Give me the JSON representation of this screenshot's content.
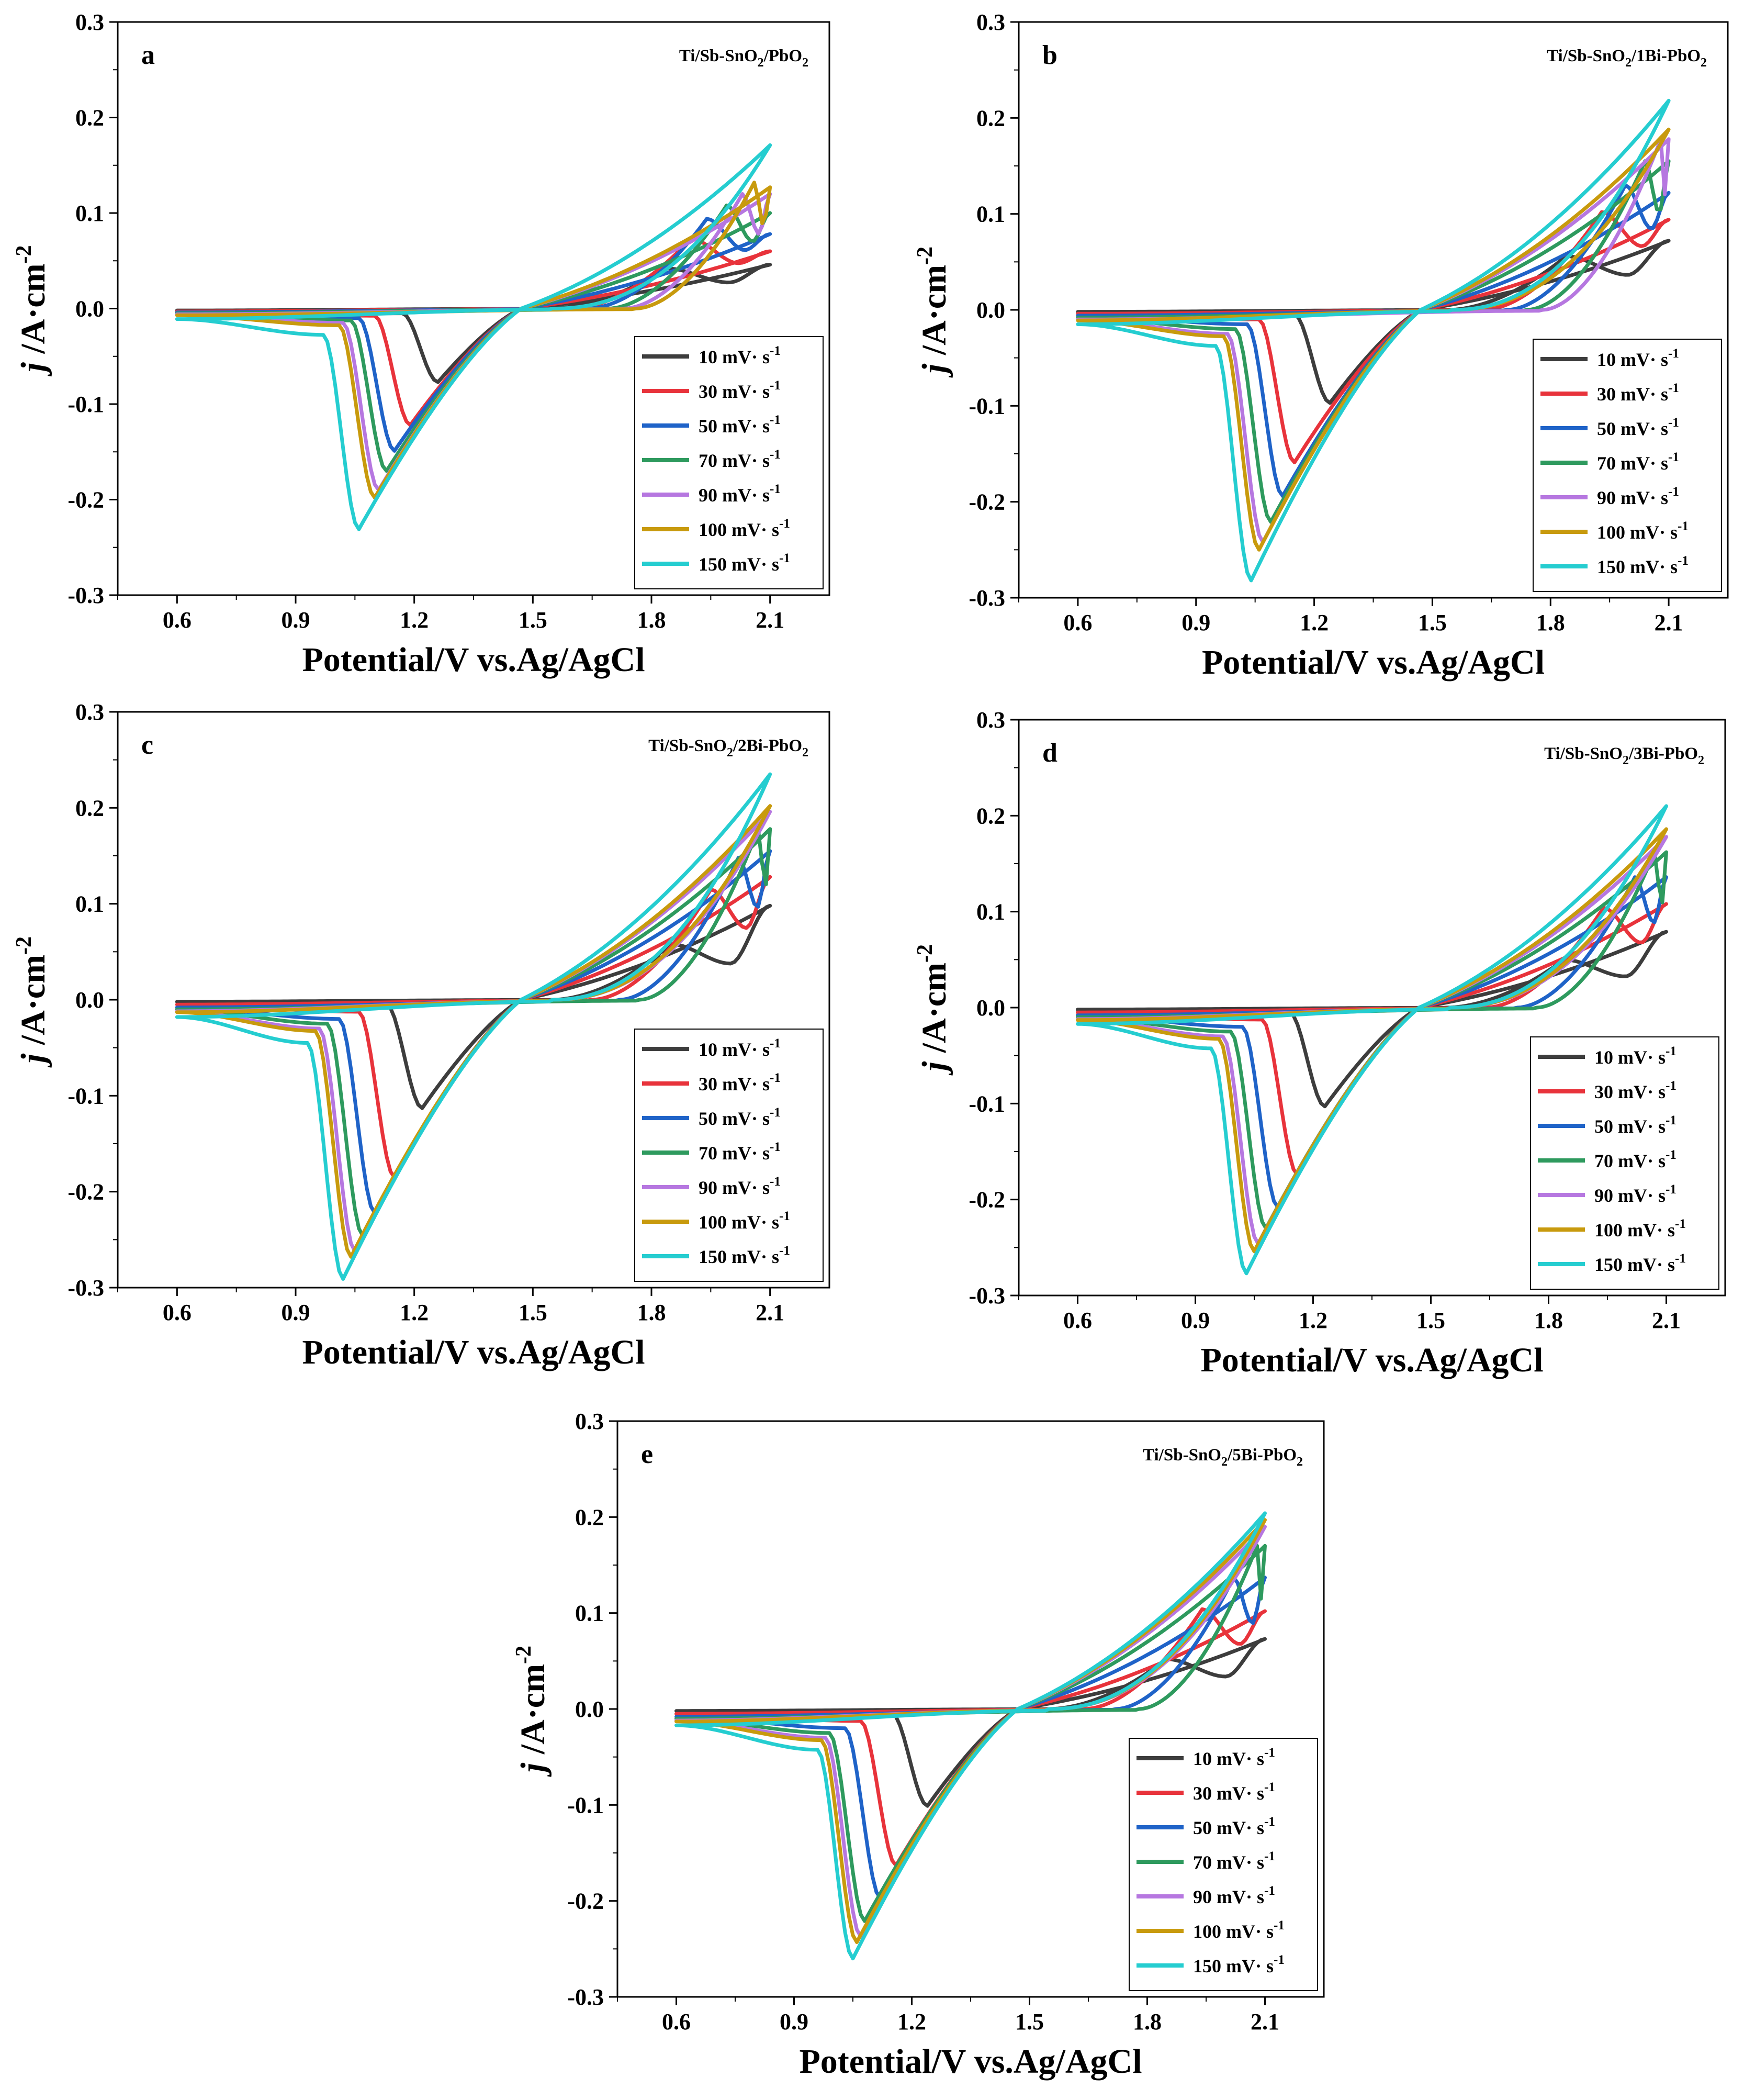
{
  "figure": {
    "scan_rates": [
      "10",
      "30",
      "50",
      "70",
      "90",
      "100",
      "150"
    ],
    "series_colors": [
      "#3d3d3d",
      "#e8333b",
      "#1f63c8",
      "#2e9a5e",
      "#b677e0",
      "#c89a0d",
      "#25cdd0"
    ]
  },
  "chart_data": [
    {
      "type": "line",
      "id": "a",
      "letter": "a",
      "label_main": "Ti/Sb-SnO",
      "label_sub": "2",
      "label_rest": "/PbO",
      "label_sub2": "2",
      "title": "",
      "xlabel": "Potential/V vs.Ag/AgCl",
      "ylabel_italic": "j",
      "ylabel_rest": " /A·cm",
      "ylabel_sup": "-2",
      "xlim": [
        0.45,
        2.25
      ],
      "ylim": [
        -0.3,
        0.3
      ],
      "xticks": [
        "0.6",
        "0.9",
        "1.2",
        "1.5",
        "1.8",
        "2.1"
      ],
      "yticks": [
        "-0.3",
        "-0.2",
        "-0.1",
        "0.0",
        "0.1",
        "0.2",
        "0.3"
      ],
      "series": [
        {
          "name": "10 mV· s",
          "sup": "-1",
          "peak_v": 1.26,
          "peak_j": -0.077,
          "max_j": 0.046,
          "ox_peak_v": 1.84,
          "ox_peak_j": 0.042,
          "base": -0.002
        },
        {
          "name": "30 mV· s",
          "sup": "-1",
          "peak_v": 1.19,
          "peak_j": -0.122,
          "max_j": 0.06,
          "ox_peak_v": 1.9,
          "ox_peak_j": 0.073,
          "base": -0.003
        },
        {
          "name": "50 mV· s",
          "sup": "-1",
          "peak_v": 1.15,
          "peak_j": -0.149,
          "max_j": 0.078,
          "ox_peak_v": 1.94,
          "ox_peak_j": 0.094,
          "base": -0.004
        },
        {
          "name": "70 mV· s",
          "sup": "-1",
          "peak_v": 1.13,
          "peak_j": -0.17,
          "max_j": 0.1,
          "ox_peak_v": 1.99,
          "ox_peak_j": 0.108,
          "base": -0.005
        },
        {
          "name": "90 mV· s",
          "sup": "-1",
          "peak_v": 1.11,
          "peak_j": -0.19,
          "max_j": 0.12,
          "ox_peak_v": 2.03,
          "ox_peak_j": 0.12,
          "base": -0.006
        },
        {
          "name": "100 mV· s",
          "sup": "-1",
          "peak_v": 1.1,
          "peak_j": -0.198,
          "max_j": 0.127,
          "ox_peak_v": 2.06,
          "ox_peak_j": 0.132,
          "base": -0.007
        },
        {
          "name": "150 mV· s",
          "sup": "-1",
          "peak_v": 1.06,
          "peak_j": -0.231,
          "max_j": 0.171,
          "ox_peak_v": 2.1,
          "ox_peak_j": 0.171,
          "base": -0.011
        }
      ]
    },
    {
      "type": "line",
      "id": "b",
      "letter": "b",
      "label_main": "Ti/Sb-SnO",
      "label_sub": "2",
      "label_rest": "/1Bi-PbO",
      "label_sub2": "2",
      "title": "",
      "xlabel": "Potential/V vs.Ag/AgCl",
      "ylabel_italic": "j",
      "ylabel_rest": " /A·cm",
      "ylabel_sup": "-2",
      "xlim": [
        0.45,
        2.25
      ],
      "ylim": [
        -0.3,
        0.3
      ],
      "xticks": [
        "0.6",
        "0.9",
        "1.2",
        "1.5",
        "1.8",
        "2.1"
      ],
      "yticks": [
        "-0.3",
        "-0.2",
        "-0.1",
        "0.0",
        "0.1",
        "0.2",
        "0.3"
      ],
      "series": [
        {
          "name": "10 mV· s",
          "sup": "-1",
          "peak_v": 1.24,
          "peak_j": -0.097,
          "max_j": 0.072,
          "ox_peak_v": 1.84,
          "ox_peak_j": 0.056,
          "base": -0.002
        },
        {
          "name": "30 mV· s",
          "sup": "-1",
          "peak_v": 1.15,
          "peak_j": -0.159,
          "max_j": 0.094,
          "ox_peak_v": 1.93,
          "ox_peak_j": 0.102,
          "base": -0.004
        },
        {
          "name": "50 mV· s",
          "sup": "-1",
          "peak_v": 1.12,
          "peak_j": -0.194,
          "max_j": 0.122,
          "ox_peak_v": 1.99,
          "ox_peak_j": 0.13,
          "base": -0.006
        },
        {
          "name": "70 mV· s",
          "sup": "-1",
          "peak_v": 1.09,
          "peak_j": -0.221,
          "max_j": 0.155,
          "ox_peak_v": 2.04,
          "ox_peak_j": 0.155,
          "base": -0.008
        },
        {
          "name": "90 mV· s",
          "sup": "-1",
          "peak_v": 1.07,
          "peak_j": -0.242,
          "max_j": 0.178,
          "ox_peak_v": 2.08,
          "ox_peak_j": 0.178,
          "base": -0.01
        },
        {
          "name": "100 mV· s",
          "sup": "-1",
          "peak_v": 1.06,
          "peak_j": -0.25,
          "max_j": 0.188,
          "ox_peak_v": 2.1,
          "ox_peak_j": 0.188,
          "base": -0.011
        },
        {
          "name": "150 mV· s",
          "sup": "-1",
          "peak_v": 1.04,
          "peak_j": -0.282,
          "max_j": 0.218,
          "ox_peak_v": 2.1,
          "ox_peak_j": 0.218,
          "base": -0.015
        }
      ]
    },
    {
      "type": "line",
      "id": "c",
      "letter": "c",
      "label_main": "Ti/Sb-SnO",
      "label_sub": "2",
      "label_rest": "/2Bi-PbO",
      "label_sub2": "2",
      "title": "",
      "xlabel": "Potential/V vs.Ag/AgCl",
      "ylabel_italic": "j",
      "ylabel_rest": " /A·cm",
      "ylabel_sup": "-2",
      "xlim": [
        0.45,
        2.25
      ],
      "ylim": [
        -0.3,
        0.3
      ],
      "xticks": [
        "0.6",
        "0.9",
        "1.2",
        "1.5",
        "1.8",
        "2.1"
      ],
      "yticks": [
        "-0.3",
        "-0.2",
        "-0.1",
        "0.0",
        "0.1",
        "0.2",
        "0.3"
      ],
      "series": [
        {
          "name": "10 mV· s",
          "sup": "-1",
          "peak_v": 1.22,
          "peak_j": -0.113,
          "max_j": 0.098,
          "ox_peak_v": 1.85,
          "ox_peak_j": 0.058,
          "base": -0.002
        },
        {
          "name": "30 mV· s",
          "sup": "-1",
          "peak_v": 1.15,
          "peak_j": -0.185,
          "max_j": 0.128,
          "ox_peak_v": 1.95,
          "ox_peak_j": 0.115,
          "base": -0.005
        },
        {
          "name": "50 mV· s",
          "sup": "-1",
          "peak_v": 1.1,
          "peak_j": -0.222,
          "max_j": 0.155,
          "ox_peak_v": 2.02,
          "ox_peak_j": 0.148,
          "base": -0.008
        },
        {
          "name": "70 mV· s",
          "sup": "-1",
          "peak_v": 1.07,
          "peak_j": -0.246,
          "max_j": 0.178,
          "ox_peak_v": 2.07,
          "ox_peak_j": 0.178,
          "base": -0.01
        },
        {
          "name": "90 mV· s",
          "sup": "-1",
          "peak_v": 1.05,
          "peak_j": -0.262,
          "max_j": 0.196,
          "ox_peak_v": 2.09,
          "ox_peak_j": 0.196,
          "base": -0.012
        },
        {
          "name": "100 mV· s",
          "sup": "-1",
          "peak_v": 1.04,
          "peak_j": -0.268,
          "max_j": 0.202,
          "ox_peak_v": 2.1,
          "ox_peak_j": 0.202,
          "base": -0.013
        },
        {
          "name": "150 mV· s",
          "sup": "-1",
          "peak_v": 1.02,
          "peak_j": -0.291,
          "max_j": 0.235,
          "ox_peak_v": 2.1,
          "ox_peak_j": 0.235,
          "base": -0.018
        }
      ]
    },
    {
      "type": "line",
      "id": "d",
      "letter": "d",
      "label_main": "Ti/Sb-SnO",
      "label_sub": "2",
      "label_rest": "/3Bi-PbO",
      "label_sub2": "2",
      "title": "",
      "xlabel": "Potential/V vs.Ag/AgCl",
      "ylabel_italic": "j",
      "ylabel_rest": " /A·cm",
      "ylabel_sup": "-2",
      "xlim": [
        0.45,
        2.25
      ],
      "ylim": [
        -0.3,
        0.3
      ],
      "xticks": [
        "0.6",
        "0.9",
        "1.2",
        "1.5",
        "1.8",
        "2.1"
      ],
      "yticks": [
        "-0.3",
        "-0.2",
        "-0.1",
        "0.0",
        "0.1",
        "0.2",
        "0.3"
      ],
      "series": [
        {
          "name": "10 mV· s",
          "sup": "-1",
          "peak_v": 1.23,
          "peak_j": -0.103,
          "max_j": 0.079,
          "ox_peak_v": 1.84,
          "ox_peak_j": 0.05,
          "base": -0.002
        },
        {
          "name": "30 mV· s",
          "sup": "-1",
          "peak_v": 1.16,
          "peak_j": -0.174,
          "max_j": 0.108,
          "ox_peak_v": 1.94,
          "ox_peak_j": 0.104,
          "base": -0.005
        },
        {
          "name": "50 mV· s",
          "sup": "-1",
          "peak_v": 1.11,
          "peak_j": -0.208,
          "max_j": 0.136,
          "ox_peak_v": 2.02,
          "ox_peak_j": 0.136,
          "base": -0.008
        },
        {
          "name": "70 mV· s",
          "sup": "-1",
          "peak_v": 1.08,
          "peak_j": -0.23,
          "max_j": 0.162,
          "ox_peak_v": 2.07,
          "ox_peak_j": 0.162,
          "base": -0.01
        },
        {
          "name": "90 mV· s",
          "sup": "-1",
          "peak_v": 1.06,
          "peak_j": -0.246,
          "max_j": 0.178,
          "ox_peak_v": 2.09,
          "ox_peak_j": 0.178,
          "base": -0.012
        },
        {
          "name": "100 mV· s",
          "sup": "-1",
          "peak_v": 1.05,
          "peak_j": -0.254,
          "max_j": 0.186,
          "ox_peak_v": 2.1,
          "ox_peak_j": 0.186,
          "base": -0.013
        },
        {
          "name": "150 mV· s",
          "sup": "-1",
          "peak_v": 1.03,
          "peak_j": -0.277,
          "max_j": 0.21,
          "ox_peak_v": 2.1,
          "ox_peak_j": 0.21,
          "base": -0.017
        }
      ]
    },
    {
      "type": "line",
      "id": "e",
      "letter": "e",
      "label_main": "Ti/Sb-SnO",
      "label_sub": "2",
      "label_rest": "/5Bi-PbO",
      "label_sub2": "2",
      "title": "",
      "xlabel": "Potential/V vs.Ag/AgCl",
      "ylabel_italic": "j",
      "ylabel_rest": " /A·cm",
      "ylabel_sup": "-2",
      "xlim": [
        0.45,
        2.25
      ],
      "ylim": [
        -0.3,
        0.3
      ],
      "xticks": [
        "0.6",
        "0.9",
        "1.2",
        "1.5",
        "1.8",
        "2.1"
      ],
      "yticks": [
        "-0.3",
        "-0.2",
        "-0.1",
        "0.0",
        "0.1",
        "0.2",
        "0.3"
      ],
      "series": [
        {
          "name": "10 mV· s",
          "sup": "-1",
          "peak_v": 1.24,
          "peak_j": -0.101,
          "max_j": 0.073,
          "ox_peak_v": 1.85,
          "ox_peak_j": 0.052,
          "base": -0.002
        },
        {
          "name": "30 mV· s",
          "sup": "-1",
          "peak_v": 1.16,
          "peak_j": -0.163,
          "max_j": 0.102,
          "ox_peak_v": 1.94,
          "ox_peak_j": 0.104,
          "base": -0.005
        },
        {
          "name": "50 mV· s",
          "sup": "-1",
          "peak_v": 1.12,
          "peak_j": -0.197,
          "max_j": 0.137,
          "ox_peak_v": 2.02,
          "ox_peak_j": 0.137,
          "base": -0.008
        },
        {
          "name": "70 mV· s",
          "sup": "-1",
          "peak_v": 1.08,
          "peak_j": -0.221,
          "max_j": 0.17,
          "ox_peak_v": 2.08,
          "ox_peak_j": 0.17,
          "base": -0.01
        },
        {
          "name": "90 mV· s",
          "sup": "-1",
          "peak_v": 1.07,
          "peak_j": -0.237,
          "max_j": 0.19,
          "ox_peak_v": 2.1,
          "ox_peak_j": 0.19,
          "base": -0.012
        },
        {
          "name": "100 mV· s",
          "sup": "-1",
          "peak_v": 1.06,
          "peak_j": -0.243,
          "max_j": 0.197,
          "ox_peak_v": 2.1,
          "ox_peak_j": 0.197,
          "base": -0.013
        },
        {
          "name": "150 mV· s",
          "sup": "-1",
          "peak_v": 1.05,
          "peak_j": -0.26,
          "max_j": 0.204,
          "ox_peak_v": 2.1,
          "ox_peak_j": 0.204,
          "base": -0.017
        }
      ]
    }
  ]
}
